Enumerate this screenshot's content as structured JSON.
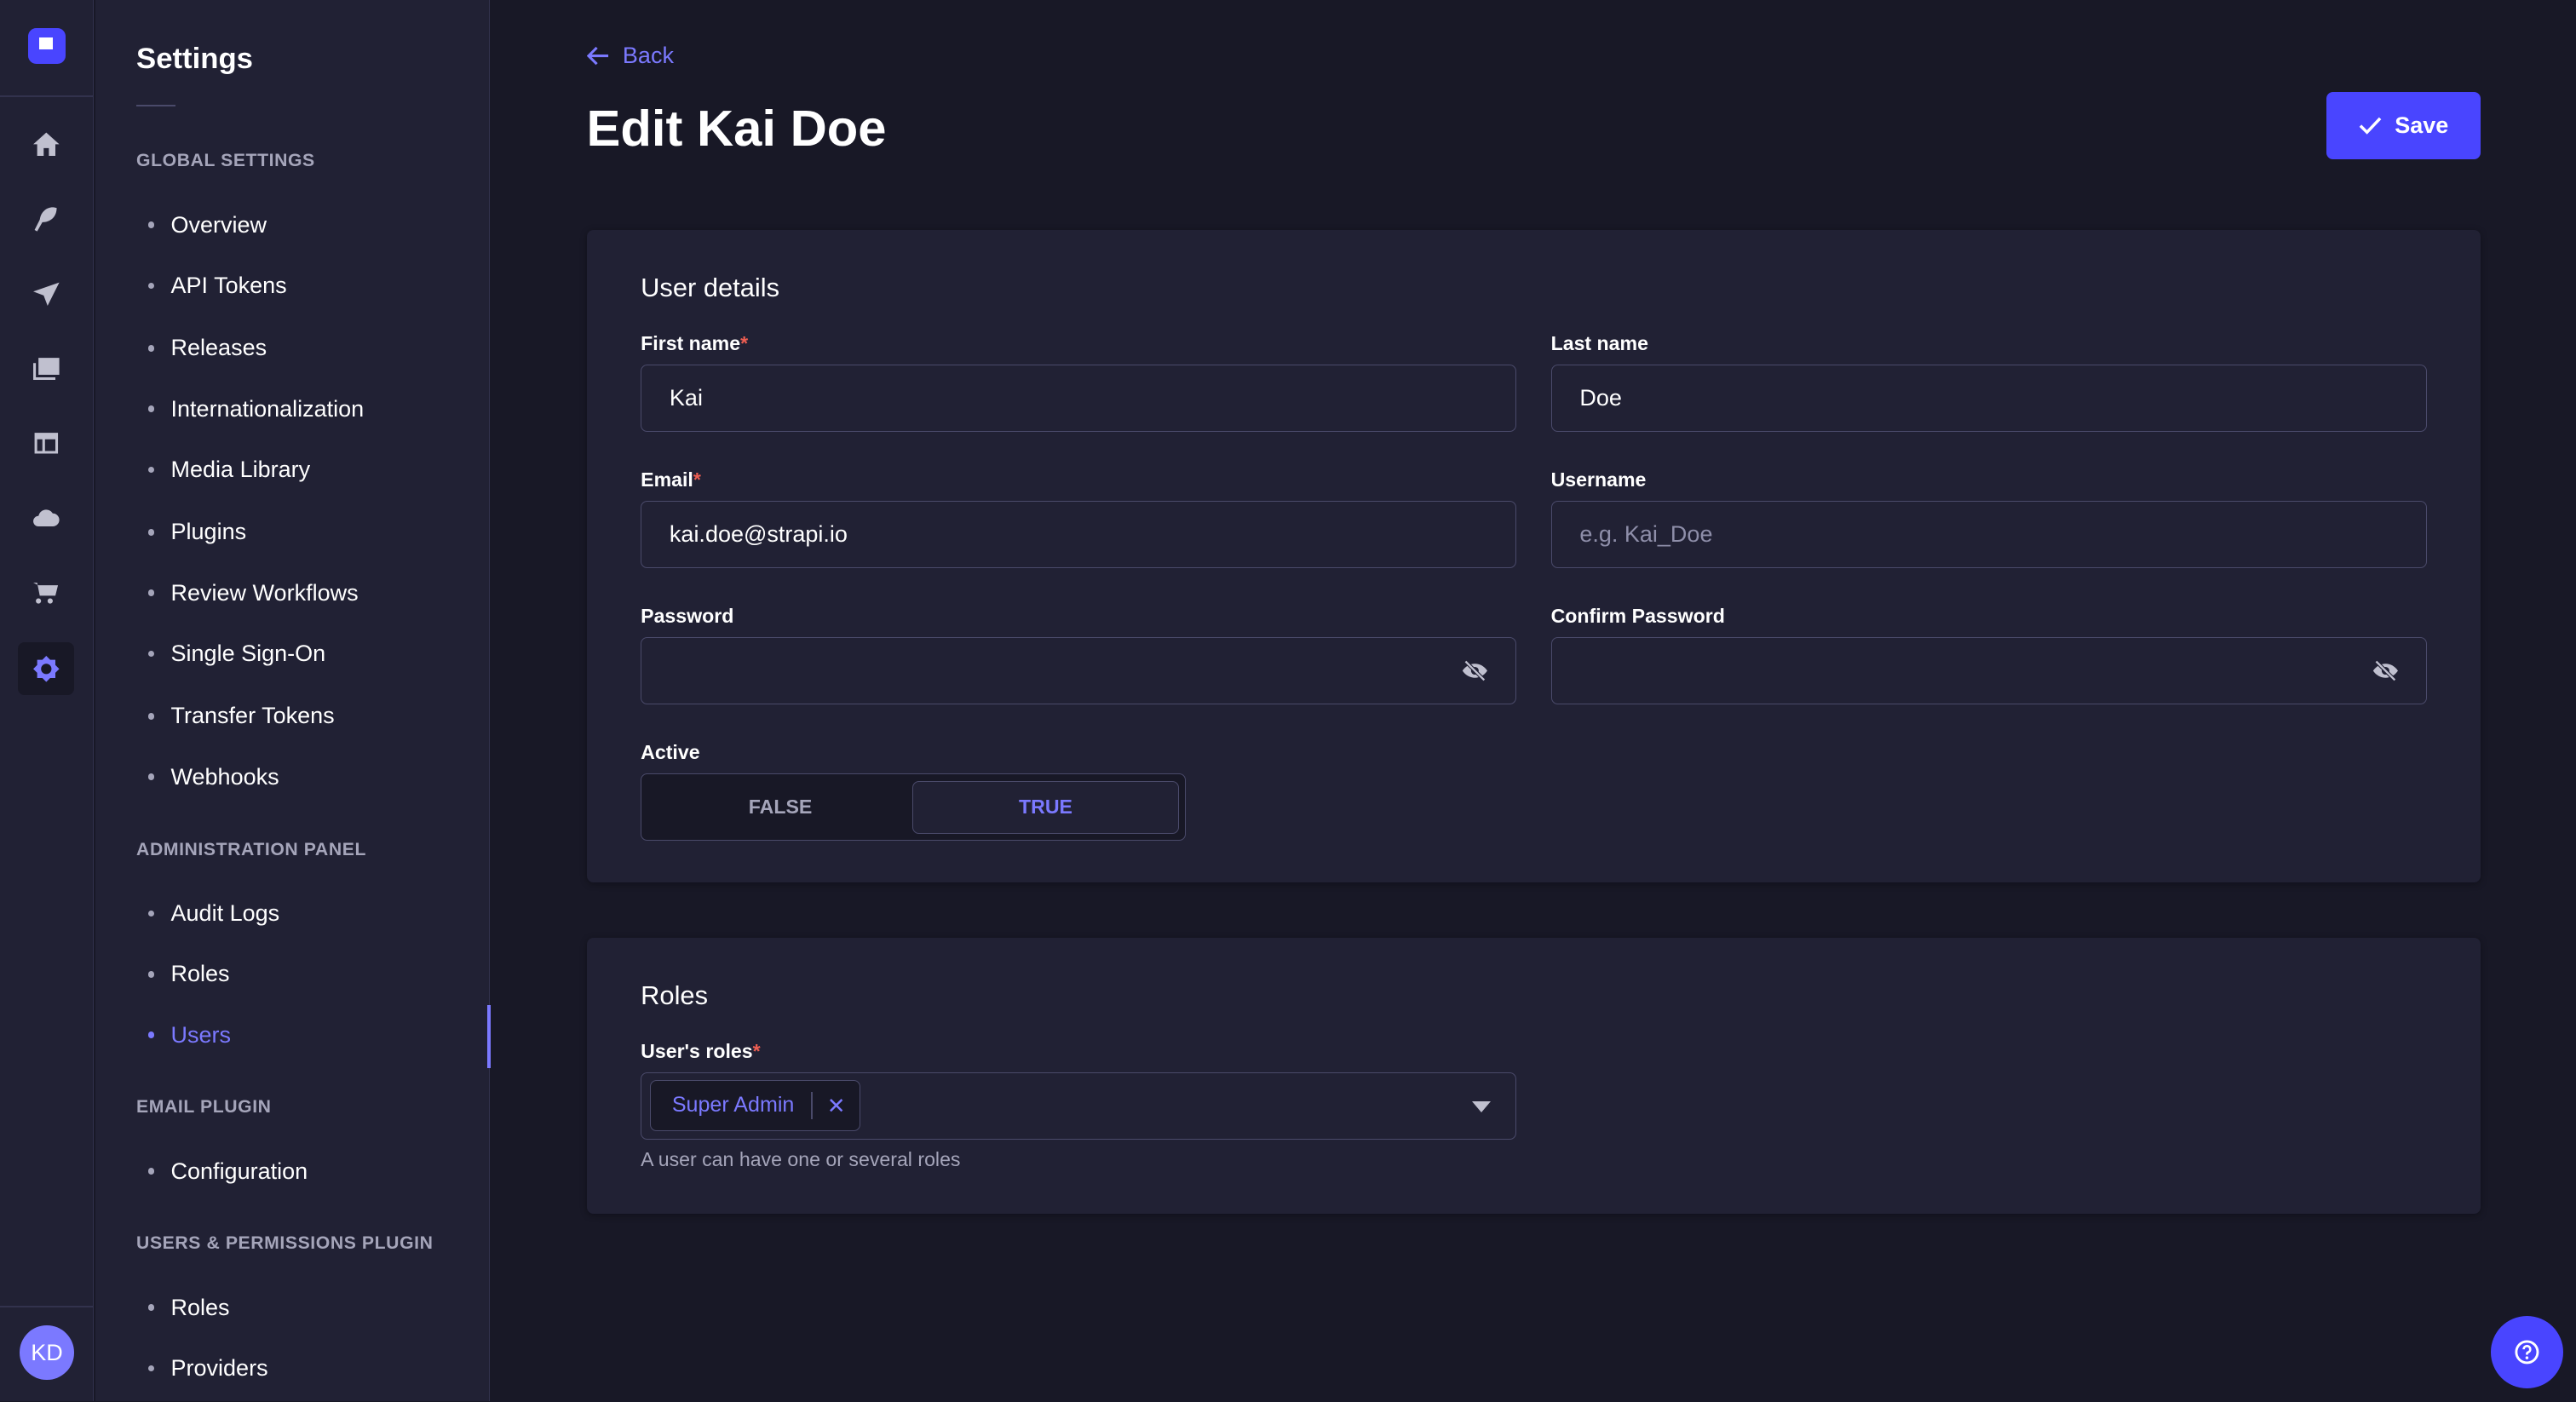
{
  "rail": {
    "icons": [
      "strapi-logo",
      "home-icon",
      "feather-icon",
      "paper-plane-icon",
      "images-icon",
      "layout-icon",
      "cloud-icon",
      "cart-icon",
      "gear-icon"
    ],
    "avatar": "KD"
  },
  "sidebar": {
    "title": "Settings",
    "sections": [
      {
        "label": "GLOBAL SETTINGS",
        "items": [
          "Overview",
          "API Tokens",
          "Releases",
          "Internationalization",
          "Media Library",
          "Plugins",
          "Review Workflows",
          "Single Sign-On",
          "Transfer Tokens",
          "Webhooks"
        ]
      },
      {
        "label": "ADMINISTRATION PANEL",
        "items": [
          "Audit Logs",
          "Roles",
          "Users"
        ]
      },
      {
        "label": "EMAIL PLUGIN",
        "items": [
          "Configuration"
        ]
      },
      {
        "label": "USERS & PERMISSIONS PLUGIN",
        "items": [
          "Roles",
          "Providers"
        ]
      }
    ],
    "active": "Users"
  },
  "header": {
    "back": "Back",
    "title": "Edit Kai Doe",
    "save": "Save"
  },
  "details": {
    "title": "User details",
    "first_name": {
      "label": "First name",
      "value": "Kai"
    },
    "last_name": {
      "label": "Last name",
      "value": "Doe"
    },
    "email": {
      "label": "Email",
      "value": "kai.doe@strapi.io"
    },
    "username": {
      "label": "Username",
      "placeholder": "e.g. Kai_Doe"
    },
    "password": {
      "label": "Password"
    },
    "confirm_password": {
      "label": "Confirm Password"
    },
    "active": {
      "label": "Active",
      "false": "FALSE",
      "true": "TRUE",
      "value": true
    }
  },
  "roles": {
    "title": "Roles",
    "label": "User's roles",
    "tags": [
      "Super Admin"
    ],
    "hint": "A user can have one or several roles"
  },
  "colors": {
    "primary": "#4945ff",
    "accent": "#7b79ff",
    "background": "#181826",
    "surface": "#212134",
    "required": "#ee5e52"
  }
}
